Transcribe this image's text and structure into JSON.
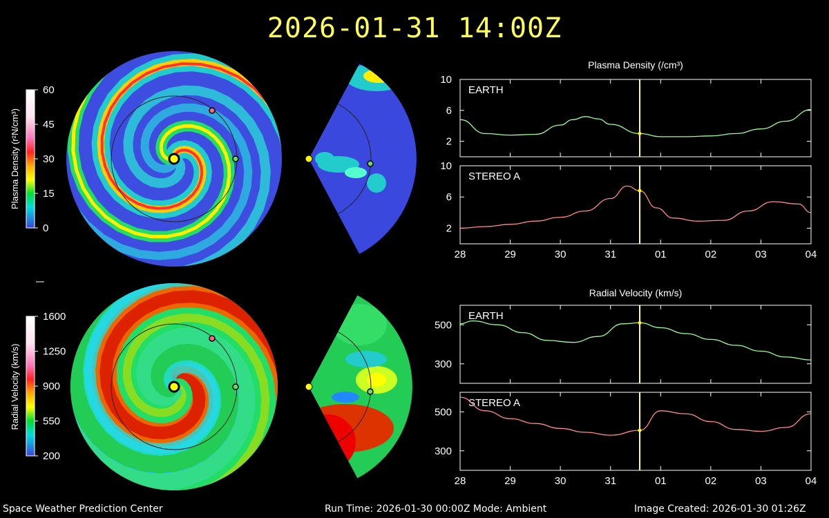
{
  "title": "2026-01-31 14:00Z",
  "footer": {
    "left": "Space Weather Prediction Center",
    "center": "Run Time: 2026-01-30 00:00Z  Mode: Ambient",
    "right": "Image Created: 2026-01-30 01:26Z"
  },
  "colors": {
    "title": "#ffff55",
    "earth_line": "#9cff9c",
    "stereo_line": "#ff8c8c",
    "time_marker": "#ffffaa",
    "sun": "#ffff00",
    "earth_marker": "#66dd66",
    "stereo_marker": "#ff6680"
  },
  "colorbars": {
    "density": {
      "label": "Plasma Density (r²N/cm³)",
      "ticks": [
        "60",
        "45",
        "30",
        "15",
        "0"
      ]
    },
    "velocity": {
      "label": "Radial Velocity (km/s)",
      "ticks": [
        "1600",
        "1250",
        "900",
        "550",
        "200"
      ]
    }
  },
  "chart_data": [
    {
      "type": "line",
      "title": "Plasma Density (/cm³)",
      "panel_label": "EARTH",
      "ylim": [
        0,
        10
      ],
      "yticks": [
        2,
        6,
        10
      ],
      "xlim": [
        "2026-01-28",
        "2026-02-04"
      ],
      "xtick_labels": [
        "28",
        "29",
        "30",
        "31",
        "01",
        "02",
        "03",
        "04"
      ],
      "current_time": "2026-01-31 14:00Z",
      "x": [
        "2026-01-28 00:00",
        "2026-01-28 12:00",
        "2026-01-29 00:00",
        "2026-01-29 12:00",
        "2026-01-30 00:00",
        "2026-01-30 06:00",
        "2026-01-30 12:00",
        "2026-01-30 18:00",
        "2026-01-31 00:00",
        "2026-01-31 14:00",
        "2026-02-01 00:00",
        "2026-02-01 12:00",
        "2026-02-02 00:00",
        "2026-02-02 12:00",
        "2026-02-03 00:00",
        "2026-02-03 12:00",
        "2026-02-04 00:00"
      ],
      "y": [
        4.8,
        3.0,
        2.8,
        2.9,
        4.1,
        4.8,
        5.2,
        4.9,
        4.2,
        3.0,
        2.6,
        2.6,
        2.7,
        3.0,
        3.6,
        4.6,
        6.1
      ]
    },
    {
      "type": "line",
      "panel_label": "STEREO A",
      "ylim": [
        0,
        10
      ],
      "yticks": [
        2,
        6,
        10
      ],
      "xlim": [
        "2026-01-28",
        "2026-02-04"
      ],
      "xtick_labels": [
        "28",
        "29",
        "30",
        "31",
        "01",
        "02",
        "03",
        "04"
      ],
      "current_time": "2026-01-31 14:00Z",
      "x": [
        "2026-01-28 00:00",
        "2026-01-28 12:00",
        "2026-01-29 00:00",
        "2026-01-29 12:00",
        "2026-01-30 00:00",
        "2026-01-30 12:00",
        "2026-01-31 00:00",
        "2026-01-31 08:00",
        "2026-01-31 14:00",
        "2026-01-31 22:00",
        "2026-02-01 06:00",
        "2026-02-01 18:00",
        "2026-02-02 06:00",
        "2026-02-02 18:00",
        "2026-02-03 06:00",
        "2026-02-03 18:00",
        "2026-02-04 00:00"
      ],
      "y": [
        2.0,
        2.2,
        2.5,
        2.9,
        3.4,
        4.2,
        5.8,
        7.4,
        6.8,
        4.6,
        3.3,
        2.9,
        3.0,
        4.2,
        5.4,
        5.1,
        4.0
      ]
    },
    {
      "type": "line",
      "title": "Radial Velocity (km/s)",
      "panel_label": "EARTH",
      "ylim": [
        200,
        600
      ],
      "yticks": [
        300,
        500
      ],
      "xlim": [
        "2026-01-28",
        "2026-02-04"
      ],
      "xtick_labels": [
        "28",
        "29",
        "30",
        "31",
        "01",
        "02",
        "03",
        "04"
      ],
      "current_time": "2026-01-31 14:00Z",
      "x": [
        "2026-01-28 00:00",
        "2026-01-28 06:00",
        "2026-01-28 18:00",
        "2026-01-29 06:00",
        "2026-01-29 18:00",
        "2026-01-30 06:00",
        "2026-01-30 18:00",
        "2026-01-31 06:00",
        "2026-01-31 14:00",
        "2026-02-01 00:00",
        "2026-02-01 12:00",
        "2026-02-02 00:00",
        "2026-02-02 12:00",
        "2026-02-03 00:00",
        "2026-02-03 12:00",
        "2026-02-04 00:00"
      ],
      "y": [
        505,
        520,
        500,
        460,
        420,
        410,
        440,
        505,
        510,
        485,
        455,
        425,
        395,
        365,
        335,
        320
      ]
    },
    {
      "type": "line",
      "panel_label": "STEREO A",
      "ylim": [
        200,
        600
      ],
      "yticks": [
        300,
        500
      ],
      "xlim": [
        "2026-01-28",
        "2026-02-04"
      ],
      "xtick_labels": [
        "28",
        "29",
        "30",
        "31",
        "01",
        "02",
        "03",
        "04"
      ],
      "current_time": "2026-01-31 14:00Z",
      "x": [
        "2026-01-28 00:00",
        "2026-01-28 12:00",
        "2026-01-29 00:00",
        "2026-01-29 12:00",
        "2026-01-30 00:00",
        "2026-01-30 12:00",
        "2026-01-31 00:00",
        "2026-01-31 14:00",
        "2026-02-01 00:00",
        "2026-02-01 12:00",
        "2026-02-02 00:00",
        "2026-02-02 12:00",
        "2026-02-03 00:00",
        "2026-02-03 12:00",
        "2026-02-04 00:00"
      ],
      "y": [
        575,
        505,
        465,
        440,
        415,
        395,
        380,
        405,
        505,
        490,
        450,
        410,
        400,
        420,
        490
      ]
    }
  ]
}
